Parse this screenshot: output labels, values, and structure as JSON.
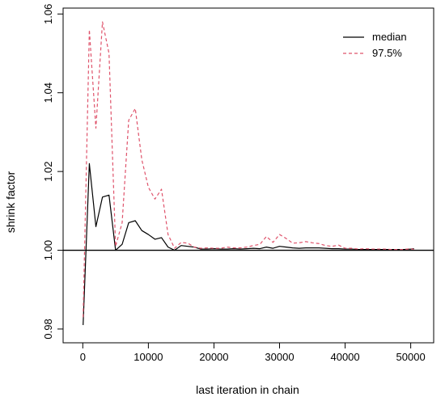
{
  "chart_data": {
    "type": "line",
    "title": "",
    "xlabel": "last iteration in chain",
    "ylabel": "shrink factor",
    "xlim": [
      -3000,
      53500
    ],
    "ylim": [
      0.9765,
      1.0615
    ],
    "xticks": [
      0,
      10000,
      20000,
      30000,
      40000,
      50000
    ],
    "xtick_labels": [
      "0",
      "10000",
      "20000",
      "30000",
      "40000",
      "50000"
    ],
    "yticks": [
      0.98,
      1.0,
      1.02,
      1.04,
      1.06
    ],
    "ytick_labels": [
      "0.98",
      "1.00",
      "1.02",
      "1.04",
      "1.06"
    ],
    "reference_line": 1.0,
    "grid": false,
    "legend_position": "top-right",
    "colors": {
      "median": "#000000",
      "q975": "#DF536B",
      "axis": "#000000"
    },
    "series": [
      {
        "name": "median",
        "style": "solid",
        "x": [
          50,
          1000,
          2000,
          3000,
          4000,
          5000,
          6000,
          7000,
          8000,
          9000,
          10000,
          11000,
          12000,
          13000,
          14000,
          15000,
          16000,
          17000,
          18000,
          19000,
          20000,
          21000,
          22000,
          23000,
          24000,
          25000,
          26000,
          27000,
          28000,
          29000,
          30000,
          31000,
          32000,
          33000,
          34000,
          35000,
          36000,
          37000,
          38000,
          39000,
          40000,
          41000,
          42000,
          43000,
          44000,
          45000,
          46000,
          47000,
          48000,
          49000,
          50000,
          50500
        ],
        "values": [
          0.981,
          1.022,
          1.006,
          1.0135,
          1.014,
          1.0,
          1.0015,
          1.007,
          1.0075,
          1.005,
          1.004,
          1.0028,
          1.0032,
          1.0008,
          1.0,
          1.0012,
          1.001,
          1.0008,
          1.0003,
          1.0003,
          1.0004,
          1.0003,
          1.0003,
          1.0004,
          1.0003,
          1.0004,
          1.0005,
          1.0004,
          1.0008,
          1.0005,
          1.001,
          1.0008,
          1.0006,
          1.0005,
          1.0006,
          1.0006,
          1.0006,
          1.0005,
          1.0004,
          1.0004,
          1.0003,
          1.0003,
          1.0002,
          1.0002,
          1.0002,
          1.0002,
          1.0002,
          1.0002,
          1.0002,
          1.0002,
          1.0003,
          1.0004
        ]
      },
      {
        "name": "97.5%",
        "style": "dashed",
        "x": [
          50,
          1000,
          2000,
          3000,
          4000,
          5000,
          6000,
          7000,
          8000,
          9000,
          10000,
          11000,
          12000,
          13000,
          14000,
          15000,
          16000,
          17000,
          18000,
          19000,
          20000,
          21000,
          22000,
          23000,
          24000,
          25000,
          26000,
          27000,
          28000,
          29000,
          30000,
          31000,
          32000,
          33000,
          34000,
          35000,
          36000,
          37000,
          38000,
          39000,
          40000,
          41000,
          42000,
          43000,
          44000,
          45000,
          46000,
          47000,
          48000,
          49000,
          50000,
          50500
        ],
        "values": [
          0.983,
          1.056,
          1.031,
          1.058,
          1.05,
          1.001,
          1.007,
          1.033,
          1.036,
          1.023,
          1.016,
          1.013,
          1.0155,
          1.004,
          1.0005,
          1.002,
          1.0018,
          1.0008,
          1.0005,
          1.0006,
          1.0005,
          1.0005,
          1.0008,
          1.0006,
          1.0006,
          1.0008,
          1.0012,
          1.0015,
          1.0035,
          1.002,
          1.004,
          1.003,
          1.0018,
          1.0019,
          1.0022,
          1.0019,
          1.0017,
          1.0012,
          1.001,
          1.0013,
          1.0005,
          1.0005,
          1.0003,
          1.0004,
          1.0003,
          1.0003,
          1.0003,
          1.0002,
          1.0002,
          1.0002,
          1.0004,
          1.0002
        ]
      }
    ]
  }
}
